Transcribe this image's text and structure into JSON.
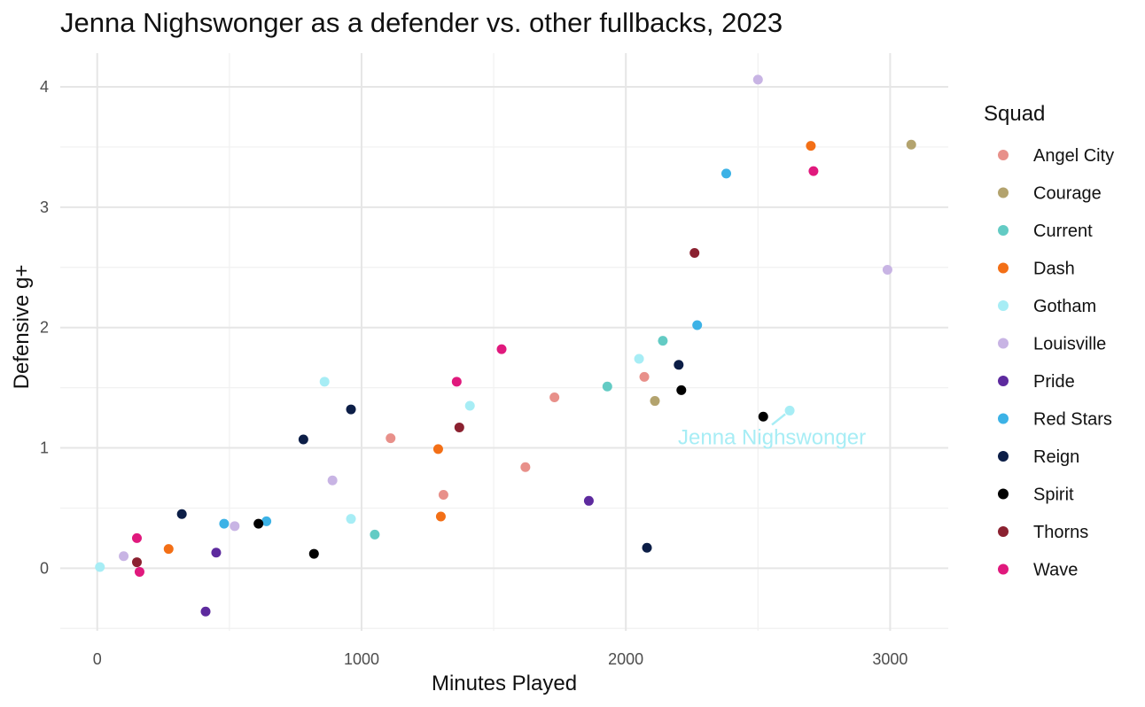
{
  "chart_data": {
    "type": "scatter",
    "title": "Jenna Nighswonger as a defender vs. other fullbacks, 2023",
    "xlabel": "Minutes Played",
    "ylabel": "Defensive g+",
    "xlim": [
      -140,
      3220
    ],
    "ylim": [
      -0.52,
      4.28
    ],
    "x_ticks": [
      0,
      1000,
      2000,
      3000
    ],
    "y_ticks": [
      0,
      1,
      2,
      3,
      4
    ],
    "grid": true,
    "legend": {
      "title": "Squad",
      "placement": "right",
      "entries": [
        "Angel City",
        "Courage",
        "Current",
        "Dash",
        "Gotham",
        "Louisville",
        "Pride",
        "Red Stars",
        "Reign",
        "Spirit",
        "Thorns",
        "Wave"
      ]
    },
    "colors": {
      "Angel City": "#E8908A",
      "Courage": "#B3A36E",
      "Current": "#63CBC4",
      "Dash": "#F36F16",
      "Gotham": "#A7EDF5",
      "Louisville": "#C8B4E4",
      "Pride": "#5D2A9E",
      "Red Stars": "#3CB2E6",
      "Reign": "#0C1E47",
      "Spirit": "#000000",
      "Thorns": "#8B2130",
      "Wave": "#E0197D"
    },
    "series": [
      {
        "name": "Angel City",
        "points": [
          [
            1110,
            1.08
          ],
          [
            1310,
            0.61
          ],
          [
            1620,
            0.84
          ],
          [
            1730,
            1.42
          ],
          [
            2070,
            1.59
          ]
        ]
      },
      {
        "name": "Courage",
        "points": [
          [
            2110,
            1.39
          ],
          [
            3080,
            3.52
          ]
        ]
      },
      {
        "name": "Current",
        "points": [
          [
            1050,
            0.28
          ],
          [
            1930,
            1.51
          ],
          [
            2140,
            1.89
          ]
        ]
      },
      {
        "name": "Dash",
        "points": [
          [
            270,
            0.16
          ],
          [
            1290,
            0.99
          ],
          [
            1300,
            0.43
          ],
          [
            2700,
            3.51
          ]
        ]
      },
      {
        "name": "Gotham",
        "points": [
          [
            10,
            0.01
          ],
          [
            860,
            1.55
          ],
          [
            960,
            0.41
          ],
          [
            1410,
            1.35
          ],
          [
            2050,
            1.74
          ],
          [
            2620,
            1.31
          ]
        ]
      },
      {
        "name": "Louisville",
        "points": [
          [
            100,
            0.1
          ],
          [
            520,
            0.35
          ],
          [
            890,
            0.73
          ],
          [
            2500,
            4.06
          ],
          [
            2990,
            2.48
          ]
        ]
      },
      {
        "name": "Pride",
        "points": [
          [
            410,
            -0.36
          ],
          [
            450,
            0.13
          ],
          [
            1860,
            0.56
          ]
        ]
      },
      {
        "name": "Red Stars",
        "points": [
          [
            480,
            0.37
          ],
          [
            640,
            0.39
          ],
          [
            2270,
            2.02
          ],
          [
            2380,
            3.28
          ]
        ]
      },
      {
        "name": "Reign",
        "points": [
          [
            320,
            0.45
          ],
          [
            780,
            1.07
          ],
          [
            960,
            1.32
          ],
          [
            2080,
            0.17
          ],
          [
            2200,
            1.69
          ]
        ]
      },
      {
        "name": "Spirit",
        "points": [
          [
            610,
            0.37
          ],
          [
            820,
            0.12
          ],
          [
            2210,
            1.48
          ],
          [
            2520,
            1.26
          ]
        ]
      },
      {
        "name": "Thorns",
        "points": [
          [
            150,
            0.05
          ],
          [
            1370,
            1.17
          ],
          [
            2260,
            2.62
          ]
        ]
      },
      {
        "name": "Wave",
        "points": [
          [
            150,
            0.25
          ],
          [
            160,
            -0.03
          ],
          [
            1360,
            1.55
          ],
          [
            1530,
            1.82
          ],
          [
            2710,
            3.3
          ]
        ]
      }
    ],
    "annotations": [
      {
        "text": "Jenna Nighswonger",
        "squad": "Gotham",
        "x": 2620,
        "y": 1.31
      }
    ]
  }
}
